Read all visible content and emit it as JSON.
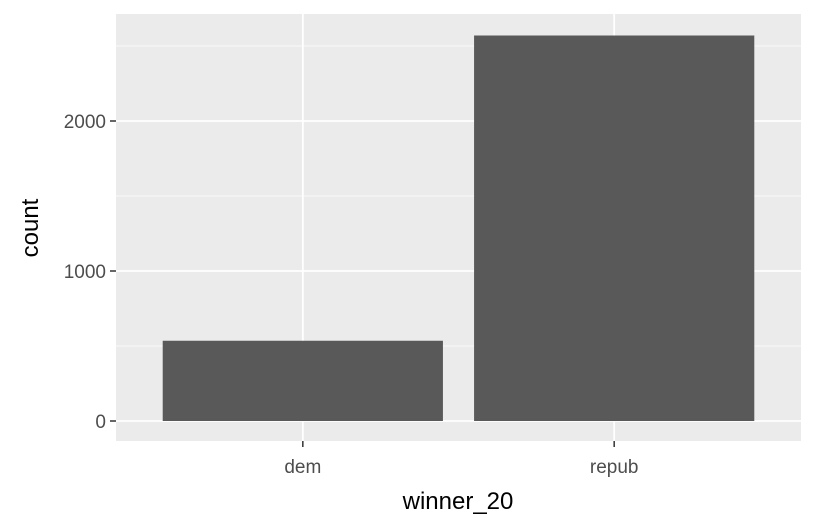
{
  "chart_data": {
    "type": "bar",
    "categories": [
      "dem",
      "repub"
    ],
    "values": [
      535,
      2570
    ],
    "xlabel": "winner_20",
    "ylabel": "count",
    "ylim": [
      0,
      2700
    ],
    "yticks": [
      0,
      1000,
      2000
    ],
    "yticks_labels": [
      "0",
      "1000",
      "2000"
    ],
    "grid": true,
    "colors": {
      "panel_background": "#ebebeb",
      "grid_major": "#ffffff",
      "bar_fill": "#595959"
    }
  }
}
